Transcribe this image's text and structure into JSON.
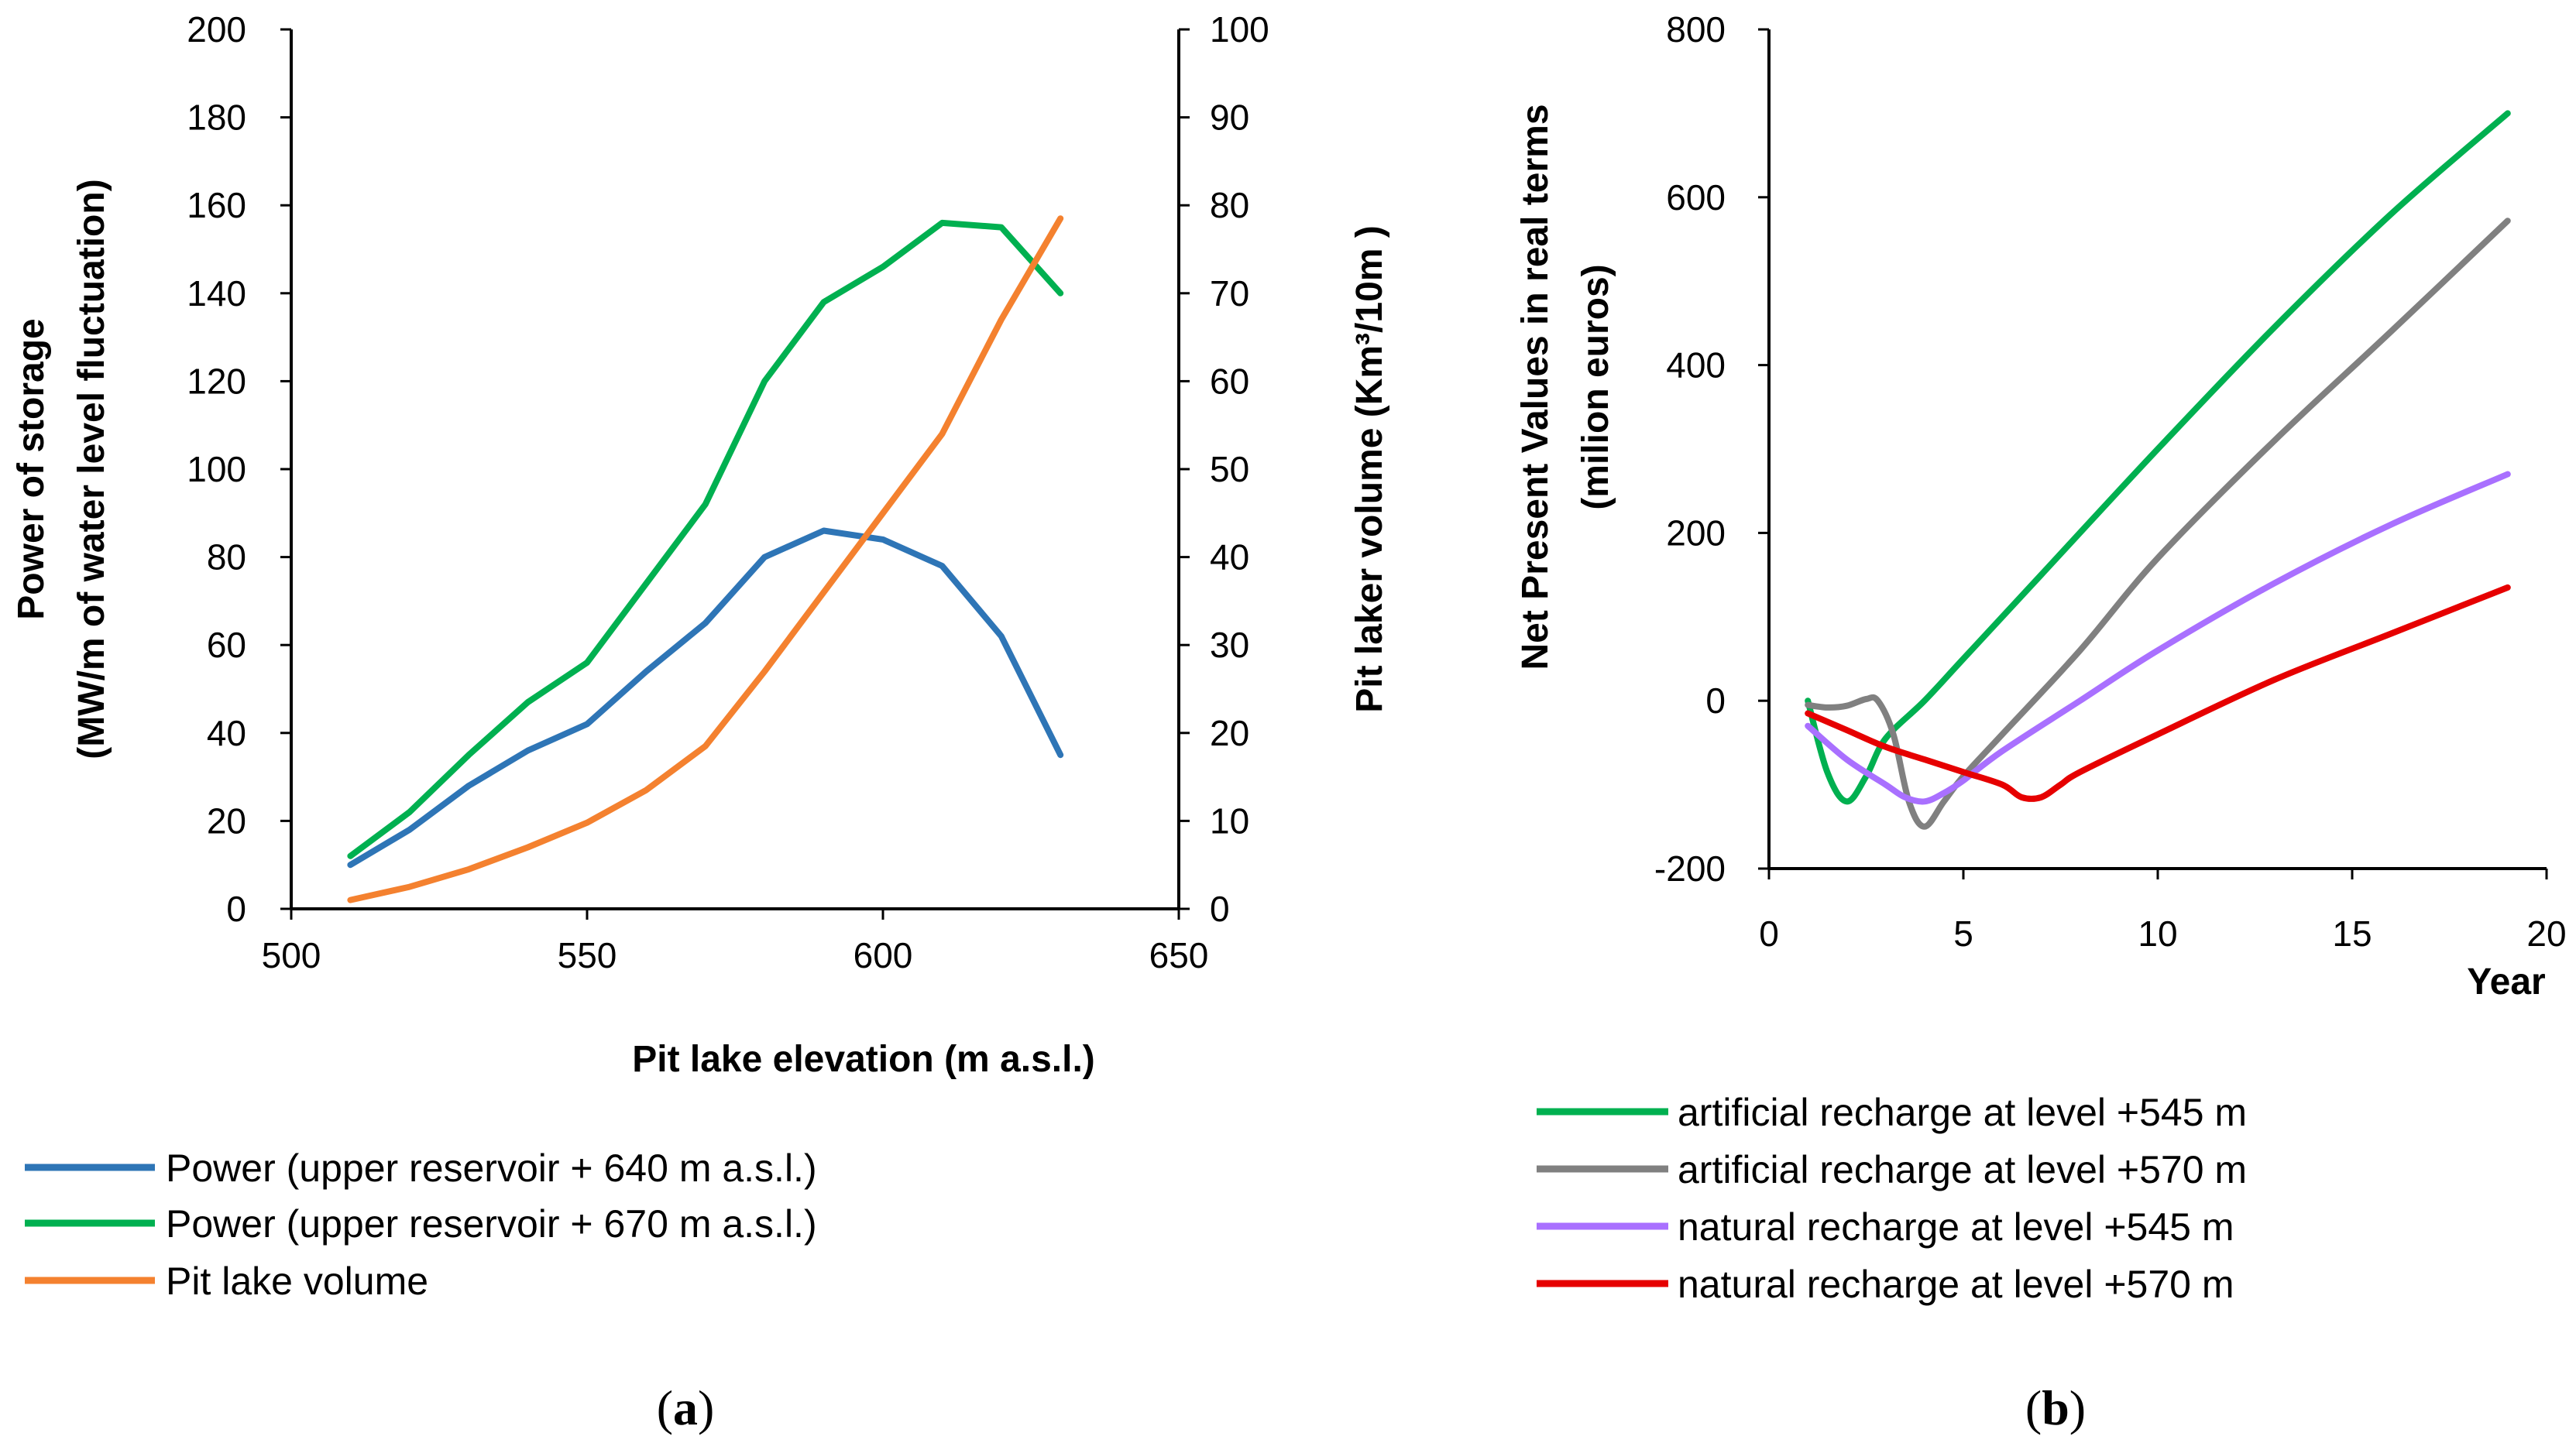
{
  "chart_data": [
    {
      "id": "a",
      "type": "line",
      "caption_letter": "a",
      "xlabel": "Pit lake elevation (m a.s.l.)",
      "ylabel_line1": "Power of storage",
      "ylabel_line2": "(MW/m of water level fluctuation)",
      "y2label": "Pit laker volume (Km³/10m )",
      "xlim": [
        500,
        650
      ],
      "xticks": [
        500,
        550,
        600,
        650
      ],
      "ylim": [
        0,
        200
      ],
      "yticks": [
        0,
        20,
        40,
        60,
        80,
        100,
        120,
        140,
        160,
        180,
        200
      ],
      "y2lim": [
        0,
        100
      ],
      "y2ticks": [
        0,
        10,
        20,
        30,
        40,
        50,
        60,
        70,
        80,
        90,
        100
      ],
      "grid": false,
      "series": [
        {
          "name": "Power (upper reservoir + 640 m a.s.l.)",
          "axis": "left",
          "color": "#2E75B6",
          "x": [
            510,
            520,
            530,
            540,
            550,
            560,
            570,
            580,
            590,
            600,
            610,
            620,
            630
          ],
          "values": [
            10,
            18,
            28,
            36,
            42,
            54,
            65,
            80,
            86,
            84,
            78,
            62,
            35
          ]
        },
        {
          "name": "Power (upper reservoir + 670 m a.s.l.)",
          "axis": "left",
          "color": "#00B050",
          "x": [
            510,
            520,
            530,
            540,
            550,
            560,
            570,
            580,
            590,
            600,
            610,
            620,
            630
          ],
          "values": [
            12,
            22,
            35,
            47,
            56,
            74,
            92,
            120,
            138,
            146,
            156,
            155,
            140
          ]
        },
        {
          "name": "Pit lake volume",
          "axis": "right",
          "color": "#F4812F",
          "x": [
            510,
            520,
            530,
            540,
            550,
            560,
            570,
            580,
            590,
            600,
            610,
            620,
            630
          ],
          "values": [
            1,
            2.5,
            4.5,
            7,
            9.8,
            13.5,
            18.5,
            27,
            36,
            45,
            54,
            67,
            78.5
          ]
        }
      ]
    },
    {
      "id": "b",
      "type": "line",
      "caption_letter": "b",
      "xlabel": "Year",
      "ylabel_line1": "Net Present Values  in real terms",
      "ylabel_line2": "(milion euros)",
      "xlim": [
        0,
        20
      ],
      "xticks": [
        0,
        5,
        10,
        15,
        20
      ],
      "ylim": [
        -200,
        800
      ],
      "yticks": [
        -200,
        0,
        200,
        400,
        600,
        800
      ],
      "grid": false,
      "series": [
        {
          "name": "artificial recharge at level +545 m",
          "color": "#00B050",
          "x": [
            1,
            1.5,
            2,
            2.5,
            3,
            4,
            5,
            7,
            10,
            13,
            16,
            19
          ],
          "values": [
            0,
            -85,
            -120,
            -90,
            -45,
            0,
            50,
            150,
            300,
            445,
            580,
            700
          ]
        },
        {
          "name": "artificial recharge at level +570 m",
          "color": "#808080",
          "x": [
            1,
            1.5,
            2,
            2.5,
            2.8,
            3.2,
            3.6,
            4,
            4.5,
            5,
            6,
            8,
            10,
            13,
            16,
            19
          ],
          "values": [
            -5,
            -8,
            -6,
            2,
            0,
            -40,
            -120,
            -150,
            -120,
            -90,
            -40,
            60,
            170,
            310,
            440,
            572
          ]
        },
        {
          "name": "natural recharge at level +545 m",
          "color": "#A970FF",
          "x": [
            1,
            2,
            3,
            3.5,
            4,
            4.5,
            5,
            6,
            8,
            10,
            13,
            16,
            19
          ],
          "values": [
            -30,
            -70,
            -100,
            -115,
            -120,
            -110,
            -95,
            -60,
            0,
            60,
            140,
            210,
            270
          ]
        },
        {
          "name": "natural recharge at level +570 m",
          "color": "#E60000",
          "x": [
            1,
            2,
            3,
            4,
            5,
            6,
            6.5,
            7,
            7.5,
            8,
            10,
            13,
            16,
            19
          ],
          "values": [
            -15,
            -35,
            -55,
            -70,
            -85,
            -100,
            -115,
            -115,
            -100,
            -85,
            -40,
            25,
            80,
            135
          ]
        }
      ]
    }
  ]
}
